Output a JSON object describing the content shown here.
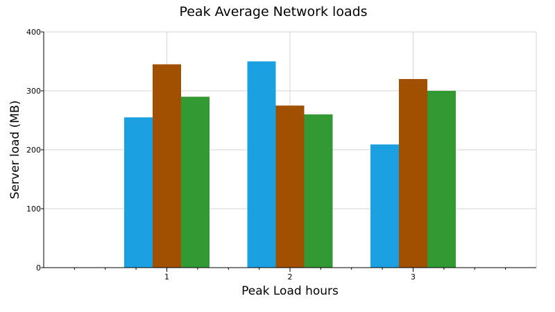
{
  "chart_data": {
    "type": "bar",
    "title": "Peak Average Network loads",
    "xlabel": "Peak Load hours",
    "ylabel": "Server load (MB)",
    "categories": [
      "1",
      "2",
      "3"
    ],
    "x_range": [
      0,
      4
    ],
    "ylim": [
      0,
      400
    ],
    "y_ticks": [
      0,
      100,
      200,
      300,
      400
    ],
    "grid": true,
    "series": [
      {
        "values": [
          255,
          350,
          209
        ],
        "color": "#1ba1e2"
      },
      {
        "values": [
          345,
          275,
          320
        ],
        "color": "#a05000"
      },
      {
        "values": [
          290,
          260,
          300
        ],
        "color": "#339933"
      }
    ]
  }
}
